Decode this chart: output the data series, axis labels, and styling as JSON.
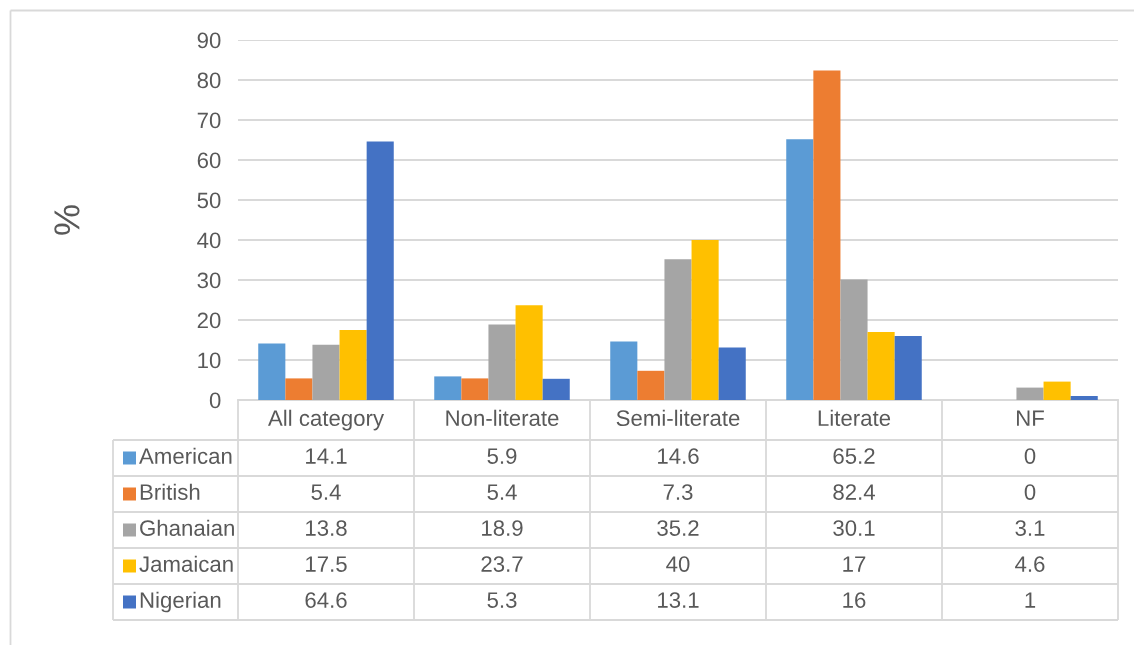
{
  "chart_data": {
    "type": "bar",
    "ylabel": "%",
    "categories": [
      "All category",
      "Non-literate",
      "Semi-literate",
      "Literate",
      "NF"
    ],
    "series": [
      {
        "name": "American",
        "color": "#5b9bd5",
        "values": [
          14.1,
          5.9,
          14.6,
          65.2,
          0
        ]
      },
      {
        "name": "British",
        "color": "#ed7d31",
        "values": [
          5.4,
          5.4,
          7.3,
          82.4,
          0
        ]
      },
      {
        "name": "Ghanaian",
        "color": "#a5a5a5",
        "values": [
          13.8,
          18.9,
          35.2,
          30.1,
          3.1
        ]
      },
      {
        "name": "Jamaican",
        "color": "#ffc000",
        "values": [
          17.5,
          23.7,
          40,
          17,
          4.6
        ]
      },
      {
        "name": "Nigerian",
        "color": "#4472c4",
        "values": [
          64.6,
          5.3,
          13.1,
          16,
          1
        ]
      }
    ],
    "ylim": [
      0,
      90
    ],
    "yticks": [
      0,
      10,
      20,
      30,
      40,
      50,
      60,
      70,
      80,
      90
    ],
    "grid": "y",
    "legend": "bottom",
    "data_labels": true
  }
}
